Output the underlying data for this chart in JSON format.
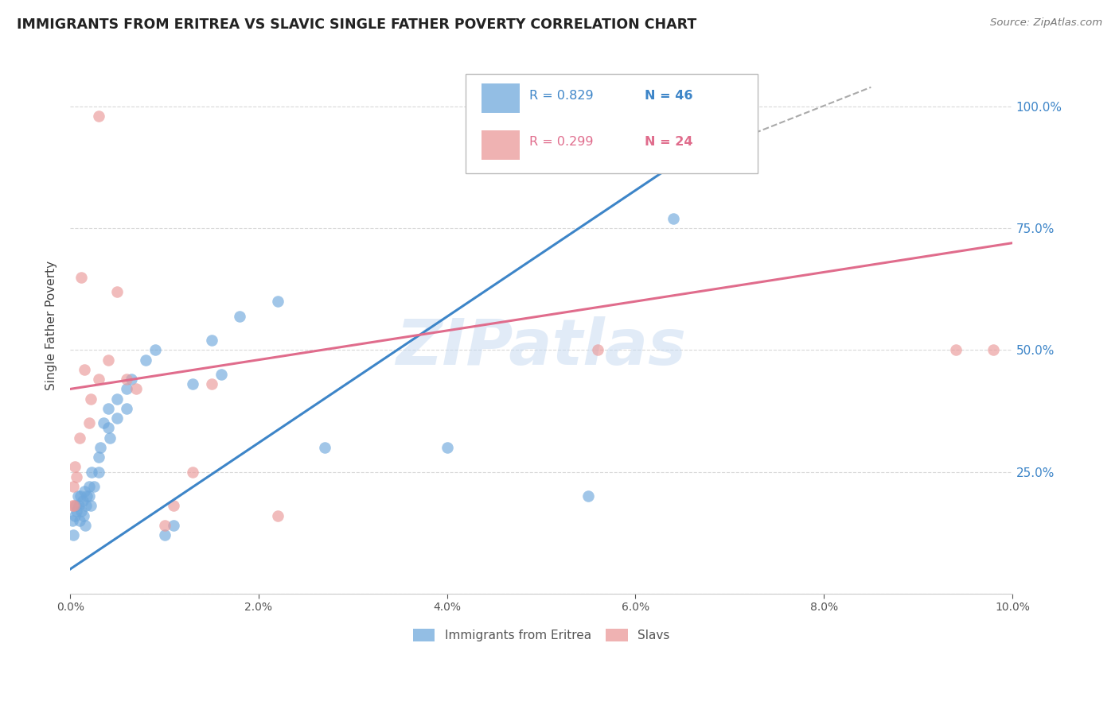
{
  "title": "IMMIGRANTS FROM ERITREA VS SLAVIC SINGLE FATHER POVERTY CORRELATION CHART",
  "source": "Source: ZipAtlas.com",
  "ylabel": "Single Father Poverty",
  "ytick_labels": [
    "",
    "25.0%",
    "50.0%",
    "75.0%",
    "100.0%"
  ],
  "legend_blue_r": "R = 0.829",
  "legend_blue_n": "N = 46",
  "legend_pink_r": "R = 0.299",
  "legend_pink_n": "N = 24",
  "legend_blue_label": "Immigrants from Eritrea",
  "legend_pink_label": "Slavs",
  "blue_color": "#6fa8dc",
  "pink_color": "#ea9999",
  "blue_line_color": "#3d85c8",
  "pink_line_color": "#e06c8c",
  "watermark": "ZIPatlas",
  "background_color": "#ffffff",
  "grid_color": "#d9d9d9",
  "blue_points_x": [
    0.0002,
    0.0003,
    0.0005,
    0.0006,
    0.0007,
    0.0008,
    0.0009,
    0.001,
    0.0011,
    0.0012,
    0.0013,
    0.0014,
    0.0015,
    0.0016,
    0.0017,
    0.0018,
    0.002,
    0.002,
    0.0022,
    0.0023,
    0.0025,
    0.003,
    0.003,
    0.0032,
    0.0035,
    0.004,
    0.004,
    0.0042,
    0.005,
    0.005,
    0.006,
    0.006,
    0.0065,
    0.008,
    0.009,
    0.01,
    0.011,
    0.013,
    0.015,
    0.016,
    0.018,
    0.022,
    0.027,
    0.04,
    0.055,
    0.064
  ],
  "blue_points_y": [
    0.15,
    0.12,
    0.16,
    0.18,
    0.17,
    0.2,
    0.18,
    0.15,
    0.2,
    0.17,
    0.19,
    0.16,
    0.21,
    0.14,
    0.18,
    0.2,
    0.22,
    0.2,
    0.18,
    0.25,
    0.22,
    0.28,
    0.25,
    0.3,
    0.35,
    0.34,
    0.38,
    0.32,
    0.4,
    0.36,
    0.42,
    0.38,
    0.44,
    0.48,
    0.5,
    0.12,
    0.14,
    0.43,
    0.52,
    0.45,
    0.57,
    0.6,
    0.3,
    0.3,
    0.2,
    0.77
  ],
  "pink_points_x": [
    0.0002,
    0.0003,
    0.0004,
    0.0005,
    0.0007,
    0.001,
    0.0012,
    0.0015,
    0.002,
    0.0022,
    0.003,
    0.003,
    0.004,
    0.005,
    0.006,
    0.007,
    0.01,
    0.011,
    0.013,
    0.015,
    0.022,
    0.056,
    0.094,
    0.098
  ],
  "pink_points_y": [
    0.18,
    0.22,
    0.18,
    0.26,
    0.24,
    0.32,
    0.65,
    0.46,
    0.35,
    0.4,
    0.44,
    0.98,
    0.48,
    0.62,
    0.44,
    0.42,
    0.14,
    0.18,
    0.25,
    0.43,
    0.16,
    0.5,
    0.5,
    0.5
  ],
  "blue_line_x0": 0.0,
  "blue_line_y0": 0.05,
  "blue_line_x1": 0.064,
  "blue_line_y1": 0.88,
  "pink_line_x0": 0.0,
  "pink_line_y0": 0.42,
  "pink_line_x1": 0.1,
  "pink_line_y1": 0.72,
  "dashed_line_x0": 0.064,
  "dashed_line_y0": 0.88,
  "dashed_line_x1": 0.085,
  "dashed_line_y1": 1.04,
  "xlim_min": 0.0,
  "xlim_max": 0.1,
  "ylim_min": 0.0,
  "ylim_max": 1.1
}
